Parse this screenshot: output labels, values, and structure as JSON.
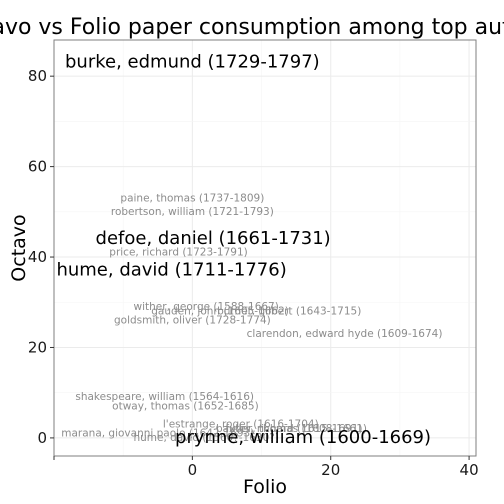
{
  "chart_data": {
    "type": "scatter",
    "title": "Octavo vs Folio paper consumption among top authors",
    "xlabel": "Folio",
    "ylabel": "Octavo",
    "xlim": [
      -20,
      41
    ],
    "ylim": [
      -4,
      88
    ],
    "x_ticks": [
      -20,
      0,
      20,
      40
    ],
    "x_tick_labels": [
      "",
      "0",
      "20",
      "40"
    ],
    "y_ticks": [
      0,
      20,
      40,
      60,
      80
    ],
    "y_tick_labels": [
      "0",
      "20",
      "40",
      "60",
      "80"
    ],
    "grid": true,
    "points": [
      {
        "label": "burke, edmund (1729-1797)",
        "x": 0,
        "y": 83,
        "size": "large"
      },
      {
        "label": "paine, thomas (1737-1809)",
        "x": 0,
        "y": 53,
        "size": "small"
      },
      {
        "label": "robertson, william (1721-1793)",
        "x": 0,
        "y": 50,
        "size": "small"
      },
      {
        "label": "defoe, daniel (1661-1731)",
        "x": 3,
        "y": 44,
        "size": "large"
      },
      {
        "label": "price, richard (1723-1791)",
        "x": -2,
        "y": 41,
        "size": "small"
      },
      {
        "label": "hume, david (1711-1776)",
        "x": -3,
        "y": 37,
        "size": "large"
      },
      {
        "label": "wither, george (1588-1667)",
        "x": 2,
        "y": 29,
        "size": "small"
      },
      {
        "label": "gauden, john (1605-1662)",
        "x": 4,
        "y": 28,
        "size": "small"
      },
      {
        "label": "burnet, gilbert (1643-1715)",
        "x": 14,
        "y": 28,
        "size": "small"
      },
      {
        "label": "goldsmith, oliver (1728-1774)",
        "x": 0,
        "y": 26,
        "size": "small"
      },
      {
        "label": "clarendon, edward hyde (1609-1674)",
        "x": 22,
        "y": 23,
        "size": "small"
      },
      {
        "label": "shakespeare, william (1564-1616)",
        "x": -4,
        "y": 9,
        "size": "small"
      },
      {
        "label": "otway, thomas (1652-1685)",
        "x": -1,
        "y": 7,
        "size": "small"
      },
      {
        "label": "l'estrange, roger (1616-1704)",
        "x": 7,
        "y": 3,
        "size": "small"
      },
      {
        "label": "baxter, richard (1615-1691)",
        "x": 14,
        "y": 2,
        "size": "small"
      },
      {
        "label": "fuller, thomas (1608-1661)",
        "x": 15,
        "y": 2,
        "size": "small"
      },
      {
        "label": "marana, giovanni paolo (1642-1693)",
        "x": -5,
        "y": 1,
        "size": "small"
      },
      {
        "label": "hume, david (1560?-1630?)",
        "x": 2,
        "y": 0,
        "size": "small"
      },
      {
        "label": "prynne, william (1600-1669)",
        "x": 16,
        "y": 0,
        "size": "large"
      }
    ]
  }
}
